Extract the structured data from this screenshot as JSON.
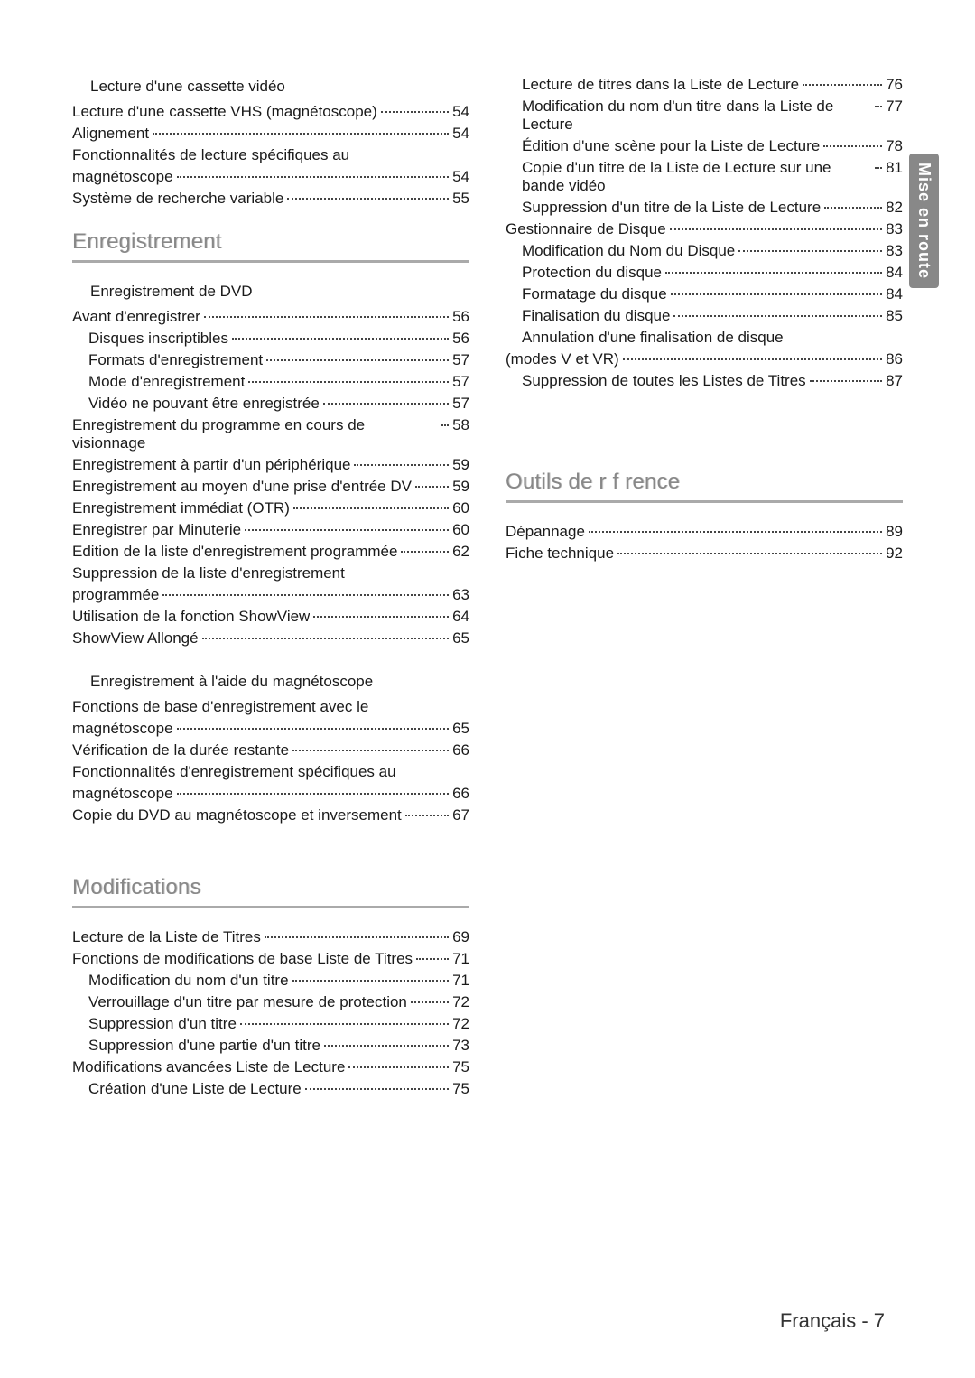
{
  "sidebar_label": "Mise en route",
  "page_footer": "Français - 7",
  "left": {
    "vhs_playback": {
      "title": "Lecture d'une cassette vidéo",
      "items": [
        {
          "label_a": "Lecture d'une cassette VHS (magnétoscope)",
          "page": "54"
        },
        {
          "label_a": "Alignement",
          "page": "54"
        },
        {
          "label_a": "Fonctionnalités de lecture spécifiques au",
          "label_b": "magnétoscope",
          "page": "54"
        },
        {
          "label_a": "Système de recherche variable",
          "page": "55"
        }
      ]
    },
    "recording": {
      "heading": "Enregistrement",
      "dvd_title": "Enregistrement de DVD",
      "dvd_items": [
        {
          "label_a": "Avant d'enregistrer",
          "page": "56",
          "indent": 0
        },
        {
          "label_a": "Disques inscriptibles",
          "page": "56",
          "indent": 1
        },
        {
          "label_a": "Formats d'enregistrement",
          "page": "57",
          "indent": 1
        },
        {
          "label_a": "Mode d'enregistrement",
          "page": "57",
          "indent": 1
        },
        {
          "label_a": "Vidéo ne pouvant être enregistrée",
          "page": "57",
          "indent": 1
        },
        {
          "label_a": "Enregistrement du programme en cours de visionnage",
          "page": "58",
          "indent": 0
        },
        {
          "label_a": "Enregistrement à partir d'un périphérique",
          "page": "59",
          "indent": 0
        },
        {
          "label_a": "Enregistrement au moyen d'une prise d'entrée DV",
          "page": "59",
          "indent": 0
        },
        {
          "label_a": "Enregistrement immédiat (OTR)",
          "page": "60",
          "indent": 0
        },
        {
          "label_a": "Enregistrer par Minuterie",
          "page": "60",
          "indent": 0
        },
        {
          "label_a": "Edition de la liste d'enregistrement programmée",
          "page": "62",
          "indent": 0
        },
        {
          "label_a": "Suppression de la liste d'enregistrement",
          "label_b": "programmée",
          "page": "63",
          "indent": 0
        },
        {
          "label_a": "Utilisation de la fonction ShowView",
          "page": "64",
          "indent": 0
        },
        {
          "label_a": "ShowView Allongé",
          "page": "65",
          "indent": 0
        }
      ],
      "vcr_title": "Enregistrement à l'aide du magnétoscope",
      "vcr_items": [
        {
          "label_a": "Fonctions de base d'enregistrement avec le",
          "label_b": "magnétoscope",
          "page": "65",
          "indent": 0
        },
        {
          "label_a": "Vérification de la durée restante",
          "page": "66",
          "indent": 0
        },
        {
          "label_a": "Fonctionnalités d'enregistrement spécifiques au",
          "label_b": "magnétoscope",
          "page": "66",
          "indent": 0
        },
        {
          "label_a": "Copie du DVD au magnétoscope et inversement",
          "page": "67",
          "indent": 0
        }
      ]
    },
    "modifications": {
      "heading": "Modifications",
      "items": [
        {
          "label_a": "Lecture de la Liste de Titres",
          "page": "69",
          "indent": 0
        },
        {
          "label_a": "Fonctions de modifications de base Liste de Titres",
          "page": "71",
          "indent": 0
        },
        {
          "label_a": "Modification du nom d'un titre",
          "page": "71",
          "indent": 1
        },
        {
          "label_a": "Verrouillage d'un titre par mesure de protection",
          "page": "72",
          "indent": 1
        },
        {
          "label_a": "Suppression d'un titre",
          "page": "72",
          "indent": 1
        },
        {
          "label_a": "Suppression d'une partie d'un titre",
          "page": "73",
          "indent": 1
        },
        {
          "label_a": "Modifications avancées Liste de Lecture",
          "page": "75",
          "indent": 0
        },
        {
          "label_a": "Création d'une Liste de Lecture",
          "page": "75",
          "indent": 1
        }
      ]
    }
  },
  "right": {
    "modifications_cont": [
      {
        "label_a": "Lecture de titres dans la Liste de Lecture",
        "page": "76",
        "indent": 1
      },
      {
        "label_a": "Modification du nom d'un titre dans la Liste de Lecture",
        "page": "77",
        "indent": 1
      },
      {
        "label_a": "Édition d'une scène pour la Liste de Lecture",
        "page": "78",
        "indent": 1
      },
      {
        "label_a": "Copie d'un titre de la Liste de Lecture sur une bande vidéo",
        "page": "81",
        "indent": 1
      },
      {
        "label_a": "Suppression d'un titre de la Liste de Lecture",
        "page": "82",
        "indent": 1
      },
      {
        "label_a": "Gestionnaire de Disque",
        "page": "83",
        "indent": 0
      },
      {
        "label_a": "Modification du Nom du Disque",
        "page": "83",
        "indent": 1
      },
      {
        "label_a": "Protection du disque",
        "page": "84",
        "indent": 1
      },
      {
        "label_a": "Formatage du disque",
        "page": "84",
        "indent": 1
      },
      {
        "label_a": "Finalisation du disque",
        "page": "85",
        "indent": 1
      },
      {
        "label_a": "Annulation d'une finalisation de disque",
        "label_b": "(modes V et VR)",
        "page": "86",
        "indent": 1
      },
      {
        "label_a": "Suppression de toutes les Listes de Titres",
        "page": "87",
        "indent": 1
      }
    ],
    "reference": {
      "heading": "Outils de r f rence",
      "items": [
        {
          "label_a": "Dépannage",
          "page": "89",
          "indent": 0
        },
        {
          "label_a": "Fiche technique",
          "page": "92",
          "indent": 0
        }
      ]
    }
  }
}
